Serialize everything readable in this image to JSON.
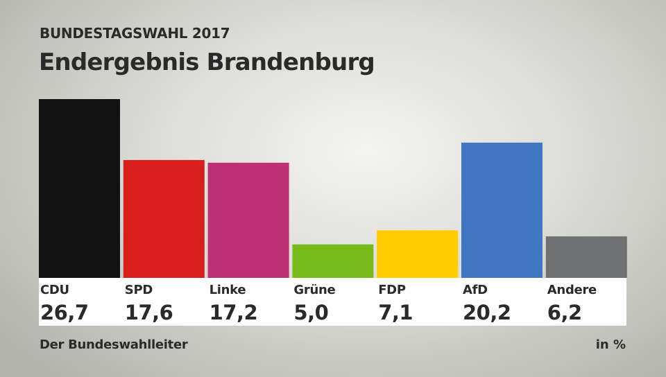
{
  "header": {
    "kicker": "BUNDESTAGSWAHL 2017",
    "title": "Endergebnis Brandenburg"
  },
  "footer": {
    "source": "Der Bundeswahlleiter",
    "unit": "in %"
  },
  "chart_data": {
    "type": "bar",
    "categories": [
      "CDU",
      "SPD",
      "Linke",
      "Grüne",
      "FDP",
      "AfD",
      "Andere"
    ],
    "values": [
      26.7,
      17.6,
      17.2,
      5.0,
      7.1,
      20.2,
      6.2
    ],
    "value_labels": [
      "26,7",
      "17,6",
      "17,2",
      "5,0",
      "7,1",
      "20,2",
      "6,2"
    ],
    "colors": [
      "#121212",
      "#d71f1d",
      "#be3075",
      "#78bc1b",
      "#ffcc00",
      "#4176c2",
      "#707173"
    ],
    "unit": "in %",
    "grid": false,
    "legend": "none"
  }
}
